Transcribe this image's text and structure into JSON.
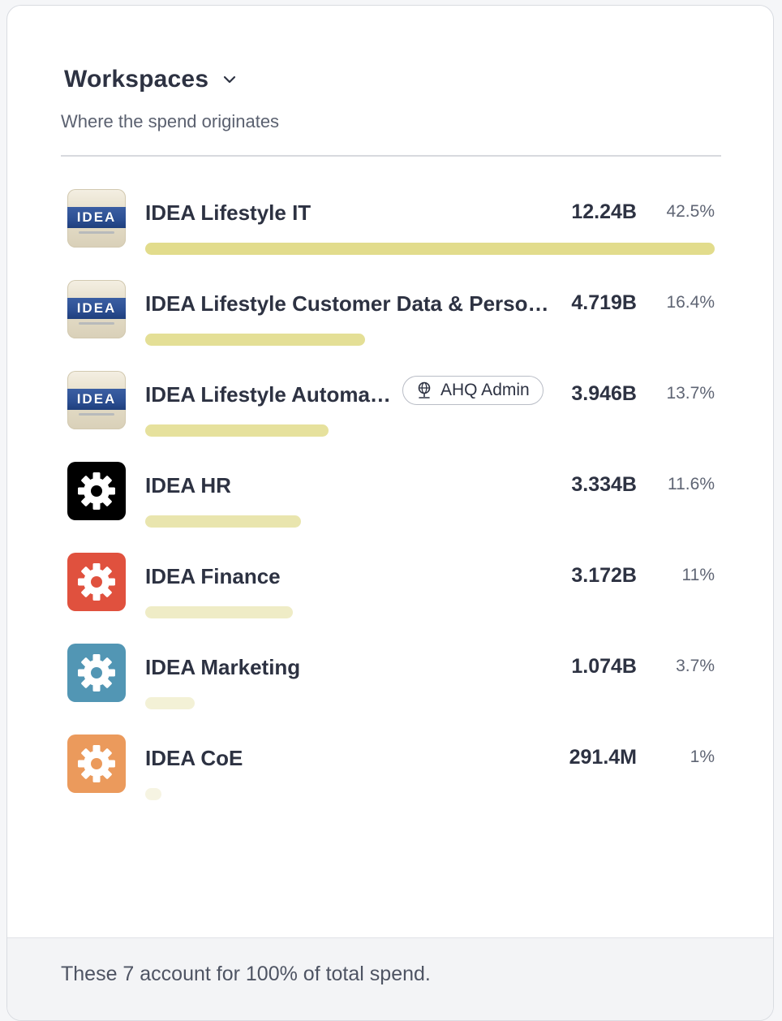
{
  "header": {
    "title": "Workspaces",
    "subtitle": "Where the spend originates"
  },
  "rows": [
    {
      "name": "IDEA Lifestyle IT",
      "amount": "12.24B",
      "percent": "42.5%",
      "share": 42.5,
      "icon": "idea-logo-icon",
      "bar_color": "#e2dc8c"
    },
    {
      "name": "IDEA Lifestyle Customer Data & Persona…",
      "amount": "4.719B",
      "percent": "16.4%",
      "share": 16.4,
      "icon": "idea-logo-icon",
      "bar_color": "#e4df96"
    },
    {
      "name": "IDEA Lifestyle Automat…",
      "amount": "3.946B",
      "percent": "13.7%",
      "share": 13.7,
      "icon": "idea-logo-icon",
      "bar_color": "#e6e19d",
      "badge": "AHQ Admin"
    },
    {
      "name": "IDEA HR",
      "amount": "3.334B",
      "percent": "11.6%",
      "share": 11.6,
      "icon": "gear-icon",
      "icon_bg": "#000000",
      "bar_color": "#e9e5ae"
    },
    {
      "name": "IDEA Finance",
      "amount": "3.172B",
      "percent": "11%",
      "share": 11.0,
      "icon": "gear-icon",
      "icon_bg": "#e0513e",
      "bar_color": "#efecc6"
    },
    {
      "name": "IDEA Marketing",
      "amount": "1.074B",
      "percent": "3.7%",
      "share": 3.7,
      "icon": "gear-icon",
      "icon_bg": "#5296b4",
      "bar_color": "#f3f1d6"
    },
    {
      "name": "IDEA CoE",
      "amount": "291.4M",
      "percent": "1%",
      "share": 1.0,
      "icon": "gear-icon",
      "icon_bg": "#eb9a5c",
      "bar_color": "#f6f4e2"
    }
  ],
  "footer": {
    "text": "These 7 account for 100% of total spend."
  }
}
